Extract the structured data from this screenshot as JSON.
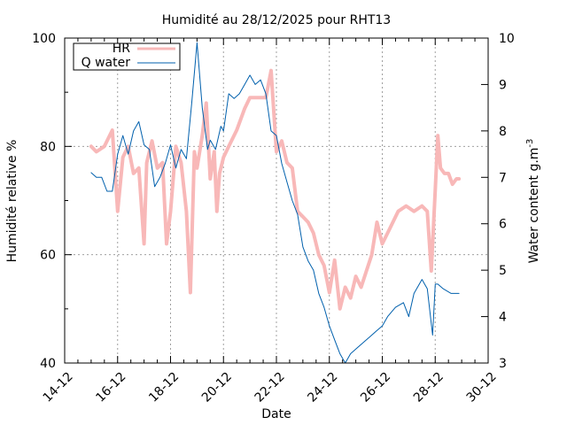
{
  "chart_data": {
    "type": "line",
    "title": "Humidité au 28/12/2025 pour RHT13",
    "xlabel": "Date",
    "ylabel_left": "Humidité relative %",
    "ylabel_right_base": "Water content g.m",
    "ylabel_right_sup": "-3",
    "x_ticks": [
      "14-12",
      "16-12",
      "18-12",
      "20-12",
      "22-12",
      "24-12",
      "26-12",
      "28-12",
      "30-12"
    ],
    "x_range_days": [
      14,
      30
    ],
    "y_left_ticks": [
      "40",
      "60",
      "80",
      "100"
    ],
    "y_left_range": [
      40,
      100
    ],
    "y_right_ticks": [
      "3",
      "4",
      "5",
      "6",
      "7",
      "8",
      "9",
      "10"
    ],
    "y_right_range": [
      3,
      10
    ],
    "grid": true,
    "legend_position": "top-left",
    "series": [
      {
        "name": "HR",
        "axis": "left",
        "color": "#f8b8b8",
        "x": [
          15.0,
          15.2,
          15.5,
          15.8,
          16.0,
          16.2,
          16.4,
          16.6,
          16.8,
          17.0,
          17.1,
          17.3,
          17.5,
          17.7,
          17.85,
          18.0,
          18.2,
          18.4,
          18.6,
          18.75,
          18.9,
          19.0,
          19.2,
          19.35,
          19.5,
          19.65,
          19.75,
          19.85,
          20.0,
          20.2,
          20.5,
          20.8,
          21.0,
          21.3,
          21.6,
          21.8,
          22.0,
          22.2,
          22.4,
          22.6,
          22.8,
          23.0,
          23.2,
          23.4,
          23.6,
          23.8,
          24.0,
          24.2,
          24.4,
          24.6,
          24.8,
          25.0,
          25.2,
          25.4,
          25.6,
          25.8,
          26.0,
          26.3,
          26.6,
          26.9,
          27.2,
          27.5,
          27.7,
          27.85,
          28.0,
          28.1,
          28.2,
          28.35,
          28.5,
          28.65,
          28.8,
          28.9
        ],
        "y": [
          80,
          79,
          80,
          83,
          68,
          78,
          80,
          75,
          76,
          62,
          77,
          81,
          76,
          77,
          62,
          68,
          80,
          77,
          68,
          53,
          79,
          76,
          82,
          88,
          74,
          79,
          68,
          75,
          78,
          80,
          83,
          87,
          89,
          89,
          89,
          94,
          79,
          81,
          77,
          76,
          68,
          67,
          66,
          64,
          60,
          58,
          53,
          59,
          50,
          54,
          52,
          56,
          54,
          57,
          60,
          66,
          62,
          65,
          68,
          69,
          68,
          69,
          68,
          57,
          72,
          82,
          76,
          75,
          75,
          73,
          74,
          74
        ]
      },
      {
        "name": "Q water",
        "axis": "right",
        "color": "#0060ad",
        "x": [
          15.0,
          15.2,
          15.4,
          15.6,
          15.8,
          16.0,
          16.2,
          16.4,
          16.6,
          16.8,
          17.0,
          17.2,
          17.4,
          17.6,
          17.8,
          18.0,
          18.2,
          18.4,
          18.6,
          18.8,
          19.0,
          19.2,
          19.4,
          19.5,
          19.7,
          19.9,
          20.0,
          20.2,
          20.4,
          20.6,
          20.8,
          21.0,
          21.2,
          21.4,
          21.6,
          21.8,
          22.0,
          22.2,
          22.4,
          22.6,
          22.8,
          23.0,
          23.2,
          23.4,
          23.6,
          23.8,
          24.0,
          24.2,
          24.4,
          24.6,
          24.8,
          25.0,
          25.2,
          25.4,
          25.6,
          25.8,
          26.0,
          26.2,
          26.5,
          26.8,
          27.0,
          27.2,
          27.5,
          27.7,
          27.9,
          28.0,
          28.1,
          28.3,
          28.6,
          28.9
        ],
        "y": [
          7.1,
          7.0,
          7.0,
          6.7,
          6.7,
          7.5,
          7.9,
          7.5,
          8.0,
          8.2,
          7.7,
          7.6,
          6.8,
          7.0,
          7.3,
          7.7,
          7.2,
          7.6,
          7.4,
          8.6,
          9.9,
          8.5,
          7.6,
          7.8,
          7.6,
          8.1,
          8.0,
          8.8,
          8.7,
          8.8,
          9.0,
          9.2,
          9.0,
          9.1,
          8.8,
          8.0,
          7.9,
          7.3,
          6.9,
          6.5,
          6.2,
          5.5,
          5.2,
          5.0,
          4.5,
          4.2,
          3.8,
          3.5,
          3.2,
          3.0,
          3.2,
          3.3,
          3.4,
          3.5,
          3.6,
          3.7,
          3.8,
          4.0,
          4.2,
          4.3,
          4.0,
          4.5,
          4.8,
          4.6,
          3.6,
          4.7,
          4.7,
          4.6,
          4.5,
          4.5
        ]
      }
    ]
  }
}
